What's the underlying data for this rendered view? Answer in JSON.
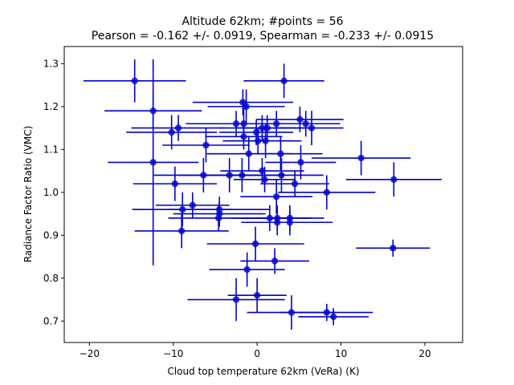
{
  "chart_data": {
    "type": "scatter",
    "title": "Altitude 62km;  #points = 56",
    "subtitle": "Pearson = -0.162 +/-  0.0919, Spearman = -0.233 +/-  0.0915",
    "xlabel": "Cloud top temperature 62km (VeRa) (K)",
    "ylabel": "Radiance Factor Ratio (VMC)",
    "xlim": [
      -23.0,
      24.5
    ],
    "ylim": [
      0.65,
      1.34
    ],
    "xticks": [
      "−20",
      "−10",
      "0",
      "10",
      "20"
    ],
    "xtick_values": [
      -20,
      -10,
      0,
      10,
      20
    ],
    "yticks": [
      "0.7",
      "0.8",
      "0.9",
      "1.0",
      "1.1",
      "1.2",
      "1.3"
    ],
    "ytick_values": [
      0.7,
      0.8,
      0.9,
      1.0,
      1.1,
      1.2,
      1.3
    ],
    "grid": false,
    "color": "#0000cc",
    "points": [
      {
        "x": -14.6,
        "y": 1.26,
        "xerr": 6.1,
        "yerr": 0.05
      },
      {
        "x": 3.2,
        "y": 1.26,
        "xerr": 4.8,
        "yerr": 0.04
      },
      {
        "x": -12.4,
        "y": 1.19,
        "xerr": 5.8,
        "yerr": 0.04
      },
      {
        "x": -1.7,
        "y": 1.21,
        "xerr": 6.0,
        "yerr": 0.03
      },
      {
        "x": -1.3,
        "y": 1.2,
        "xerr": 4.6,
        "yerr": 0.04
      },
      {
        "x": -2.5,
        "y": 1.16,
        "xerr": 6.0,
        "yerr": 0.03
      },
      {
        "x": -1.6,
        "y": 1.16,
        "xerr": 4.6,
        "yerr": 0.04
      },
      {
        "x": 0.6,
        "y": 1.15,
        "xerr": 5.0,
        "yerr": 0.03
      },
      {
        "x": 2.3,
        "y": 1.16,
        "xerr": 4.5,
        "yerr": 0.03
      },
      {
        "x": 5.1,
        "y": 1.17,
        "xerr": 5.2,
        "yerr": 0.03
      },
      {
        "x": 5.8,
        "y": 1.16,
        "xerr": 4.1,
        "yerr": 0.03
      },
      {
        "x": 6.5,
        "y": 1.15,
        "xerr": 3.8,
        "yerr": 0.04
      },
      {
        "x": -9.4,
        "y": 1.15,
        "xerr": 5.6,
        "yerr": 0.03
      },
      {
        "x": -10.2,
        "y": 1.14,
        "xerr": 5.4,
        "yerr": 0.04
      },
      {
        "x": -0.1,
        "y": 1.14,
        "xerr": 4.4,
        "yerr": 0.03
      },
      {
        "x": -1.6,
        "y": 1.13,
        "xerr": 4.6,
        "yerr": 0.03
      },
      {
        "x": 0.1,
        "y": 1.12,
        "xerr": 4.2,
        "yerr": 0.03
      },
      {
        "x": 1.0,
        "y": 1.12,
        "xerr": 4.3,
        "yerr": 0.04
      },
      {
        "x": -6.1,
        "y": 1.11,
        "xerr": 5.2,
        "yerr": 0.04
      },
      {
        "x": -1.0,
        "y": 1.09,
        "xerr": 5.0,
        "yerr": 0.04
      },
      {
        "x": 2.8,
        "y": 1.09,
        "xerr": 5.0,
        "yerr": 0.04
      },
      {
        "x": 12.4,
        "y": 1.08,
        "xerr": 5.9,
        "yerr": 0.04
      },
      {
        "x": 5.2,
        "y": 1.07,
        "xerr": 4.2,
        "yerr": 0.04
      },
      {
        "x": -12.4,
        "y": 1.07,
        "xerr": 5.4,
        "yerr": 0.24
      },
      {
        "x": 0.6,
        "y": 1.05,
        "xerr": 5.0,
        "yerr": 0.03
      },
      {
        "x": -3.3,
        "y": 1.04,
        "xerr": 6.0,
        "yerr": 0.04
      },
      {
        "x": -1.8,
        "y": 1.04,
        "xerr": 4.9,
        "yerr": 0.04
      },
      {
        "x": 2.9,
        "y": 1.04,
        "xerr": 5.0,
        "yerr": 0.04
      },
      {
        "x": -6.4,
        "y": 1.04,
        "xerr": 5.9,
        "yerr": 0.04
      },
      {
        "x": 0.9,
        "y": 1.03,
        "xerr": 3.7,
        "yerr": 0.03
      },
      {
        "x": 16.3,
        "y": 1.03,
        "xerr": 5.7,
        "yerr": 0.04
      },
      {
        "x": -9.8,
        "y": 1.02,
        "xerr": 5.0,
        "yerr": 0.04
      },
      {
        "x": 4.5,
        "y": 1.02,
        "xerr": 4.1,
        "yerr": 0.03
      },
      {
        "x": 8.3,
        "y": 1.0,
        "xerr": 5.8,
        "yerr": 0.04
      },
      {
        "x": 2.3,
        "y": 0.99,
        "xerr": 4.3,
        "yerr": 0.04
      },
      {
        "x": -7.7,
        "y": 0.97,
        "xerr": 4.4,
        "yerr": 0.03
      },
      {
        "x": -8.9,
        "y": 0.96,
        "xerr": 6.0,
        "yerr": 0.04
      },
      {
        "x": -4.5,
        "y": 0.96,
        "xerr": 6.0,
        "yerr": 0.03
      },
      {
        "x": -4.5,
        "y": 0.95,
        "xerr": 5.5,
        "yerr": 0.03
      },
      {
        "x": -4.6,
        "y": 0.94,
        "xerr": 6.0,
        "yerr": 0.03
      },
      {
        "x": 1.5,
        "y": 0.94,
        "xerr": 4.6,
        "yerr": 0.03
      },
      {
        "x": 2.4,
        "y": 0.94,
        "xerr": 4.2,
        "yerr": 0.03
      },
      {
        "x": 3.9,
        "y": 0.94,
        "xerr": 4.1,
        "yerr": 0.03
      },
      {
        "x": 2.4,
        "y": 0.93,
        "xerr": 4.3,
        "yerr": 0.03
      },
      {
        "x": 3.9,
        "y": 0.93,
        "xerr": 5.1,
        "yerr": 0.03
      },
      {
        "x": -9.0,
        "y": 0.91,
        "xerr": 5.6,
        "yerr": 0.04
      },
      {
        "x": -0.2,
        "y": 0.88,
        "xerr": 5.8,
        "yerr": 0.04
      },
      {
        "x": 16.2,
        "y": 0.87,
        "xerr": 4.4,
        "yerr": 0.02
      },
      {
        "x": 2.1,
        "y": 0.84,
        "xerr": 4.1,
        "yerr": 0.03
      },
      {
        "x": -1.2,
        "y": 0.82,
        "xerr": 4.5,
        "yerr": 0.04
      },
      {
        "x": -2.5,
        "y": 0.75,
        "xerr": 5.8,
        "yerr": 0.05
      },
      {
        "x": 0.0,
        "y": 0.76,
        "xerr": 3.5,
        "yerr": 0.04
      },
      {
        "x": 4.1,
        "y": 0.72,
        "xerr": 5.3,
        "yerr": 0.04
      },
      {
        "x": 8.3,
        "y": 0.72,
        "xerr": 5.5,
        "yerr": 0.02
      },
      {
        "x": 9.1,
        "y": 0.71,
        "xerr": 4.2,
        "yerr": 0.02
      },
      {
        "x": 1.2,
        "y": 1.15,
        "xerr": 3.4,
        "yerr": 0.03
      }
    ]
  }
}
